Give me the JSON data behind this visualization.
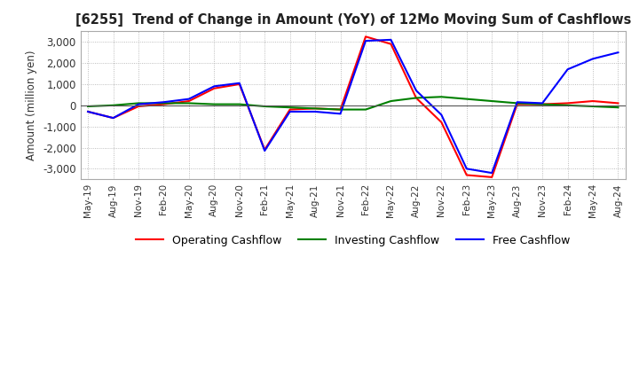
{
  "title": "[6255]  Trend of Change in Amount (YoY) of 12Mo Moving Sum of Cashflows",
  "ylabel": "Amount (million yen)",
  "ylim": [
    -3500,
    3500
  ],
  "yticks": [
    -3000,
    -2000,
    -1000,
    0,
    1000,
    2000,
    3000
  ],
  "x_labels": [
    "May-19",
    "Aug-19",
    "Nov-19",
    "Feb-20",
    "May-20",
    "Aug-20",
    "Nov-20",
    "Feb-21",
    "May-21",
    "Aug-21",
    "Nov-21",
    "Feb-22",
    "May-22",
    "Aug-22",
    "Nov-22",
    "Feb-23",
    "May-23",
    "Aug-23",
    "Nov-23",
    "Feb-24",
    "May-24",
    "Aug-24"
  ],
  "operating": [
    -300,
    -600,
    -50,
    50,
    200,
    800,
    1000,
    -2100,
    -200,
    -150,
    -200,
    3250,
    2900,
    350,
    -800,
    -3300,
    -3400,
    50,
    50,
    100,
    200,
    100
  ],
  "investing": [
    -50,
    0,
    100,
    100,
    100,
    50,
    50,
    -50,
    -100,
    -150,
    -200,
    -200,
    200,
    350,
    400,
    300,
    200,
    100,
    50,
    0,
    -50,
    -100
  ],
  "free": [
    -300,
    -600,
    50,
    150,
    300,
    900,
    1050,
    -2150,
    -300,
    -300,
    -400,
    3050,
    3100,
    700,
    -450,
    -3000,
    -3200,
    150,
    100,
    1700,
    2200,
    2500
  ],
  "op_color": "#ff0000",
  "inv_color": "#008000",
  "free_color": "#0000ff",
  "bg_color": "#ffffff",
  "grid_color": "#aaaaaa"
}
